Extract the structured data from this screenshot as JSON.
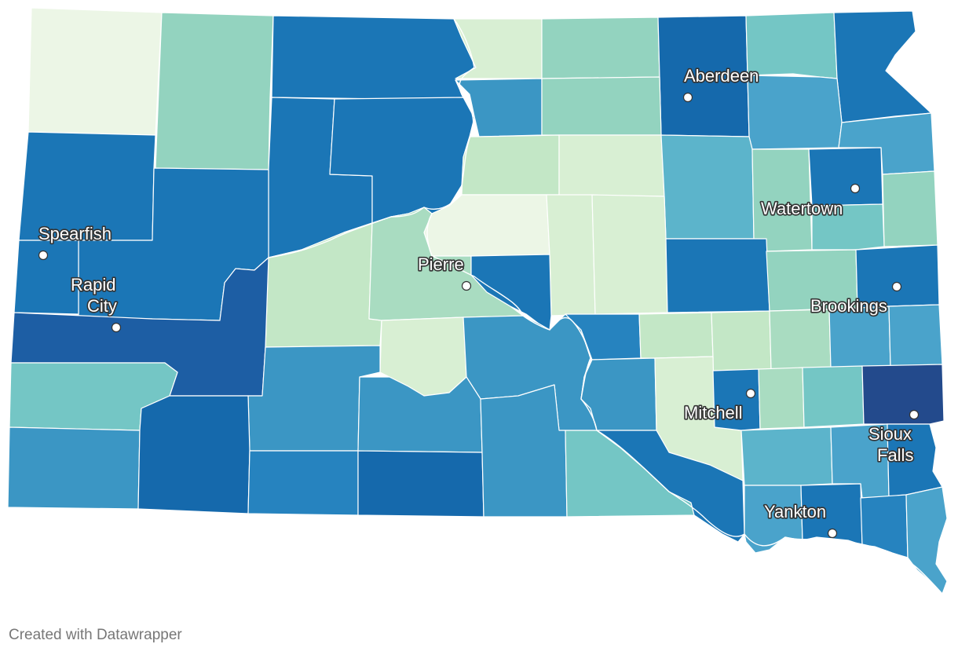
{
  "credit": "Created with Datawrapper",
  "palette": {
    "c0": "#ecf6e6",
    "c1": "#d8efd3",
    "c2": "#c3e7c6",
    "c3": "#a9dcc1",
    "c4": "#93d3bf",
    "c5": "#74c6c5",
    "c6": "#5cb4cb",
    "c7": "#4aa3cb",
    "c8": "#3b96c4",
    "c9": "#2683bf",
    "c10": "#1b76b6",
    "c11": "#1569ac",
    "c12": "#1d5ea4",
    "c13": "#234a8c"
  },
  "cities": [
    {
      "name": "Aberdeen"
    },
    {
      "name": "Watertown"
    },
    {
      "name": "Spearfish"
    },
    {
      "name": "Rapid City",
      "lines": [
        "Rapid",
        "City"
      ]
    },
    {
      "name": "Pierre"
    },
    {
      "name": "Brookings"
    },
    {
      "name": "Mitchell"
    },
    {
      "name": "Sioux Falls",
      "lines": [
        "Sioux",
        "Falls"
      ]
    },
    {
      "name": "Yankton"
    }
  ]
}
